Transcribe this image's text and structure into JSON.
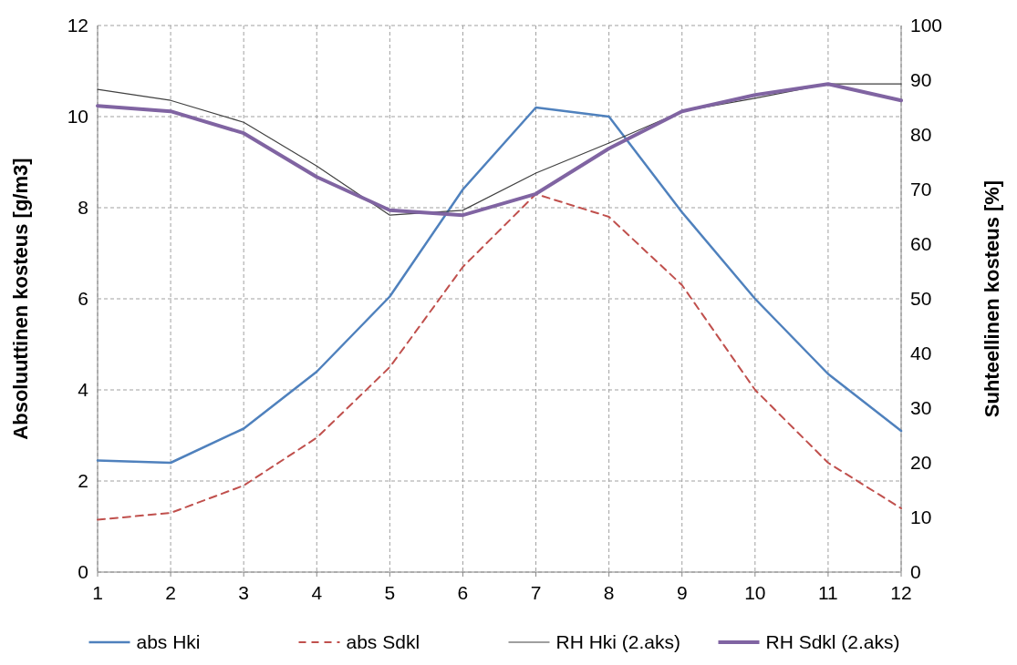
{
  "chart_data": {
    "type": "line",
    "xlabel": null,
    "ylabel": "Absoluuttinen kosteus [g/m3]",
    "y2label": "Suhteellinen kosteus [%]",
    "x": [
      1,
      2,
      3,
      4,
      5,
      6,
      7,
      8,
      9,
      10,
      11,
      12
    ],
    "xlim": [
      1,
      12
    ],
    "xticks": [
      1,
      2,
      3,
      4,
      5,
      6,
      7,
      8,
      9,
      10,
      11,
      12
    ],
    "ylim": [
      0,
      12
    ],
    "yticks": [
      0,
      2,
      4,
      6,
      8,
      10,
      12
    ],
    "y2lim": [
      0,
      100
    ],
    "y2ticks": [
      0,
      10,
      20,
      30,
      40,
      50,
      60,
      70,
      80,
      90,
      100
    ],
    "grid": true,
    "legend": "bottom",
    "series": [
      {
        "name": "abs Hki",
        "color": "#4f81bd",
        "line_style": "solid",
        "values": [
          2.45,
          2.4,
          3.15,
          4.4,
          6.05,
          8.4,
          10.2,
          10.0,
          7.9,
          6.0,
          4.35,
          3.1
        ]
      },
      {
        "name": "abs Sdkl",
        "color": "#c0504d",
        "line_style": "dashed",
        "values": [
          1.15,
          1.3,
          1.9,
          2.95,
          4.5,
          6.7,
          8.3,
          7.8,
          6.3,
          4.0,
          2.4,
          1.4
        ]
      },
      {
        "name": "RH Hki (2.aks)",
        "color": "#404040",
        "line_style": "solid",
        "axis": "y2",
        "values": [
          88.3,
          86.3,
          82.3,
          74.3,
          65.3,
          66.2,
          73,
          78.5,
          84.3,
          86.7,
          89.3,
          89.3
        ]
      },
      {
        "name": "RH Sdkl (2.aks)",
        "color": "#8064a2",
        "line_style": "solid",
        "axis": "y2",
        "values": [
          85.3,
          84.3,
          80.3,
          72.3,
          66.2,
          65.3,
          69.2,
          77.5,
          84.3,
          87.3,
          89.3,
          86.3
        ]
      }
    ]
  }
}
